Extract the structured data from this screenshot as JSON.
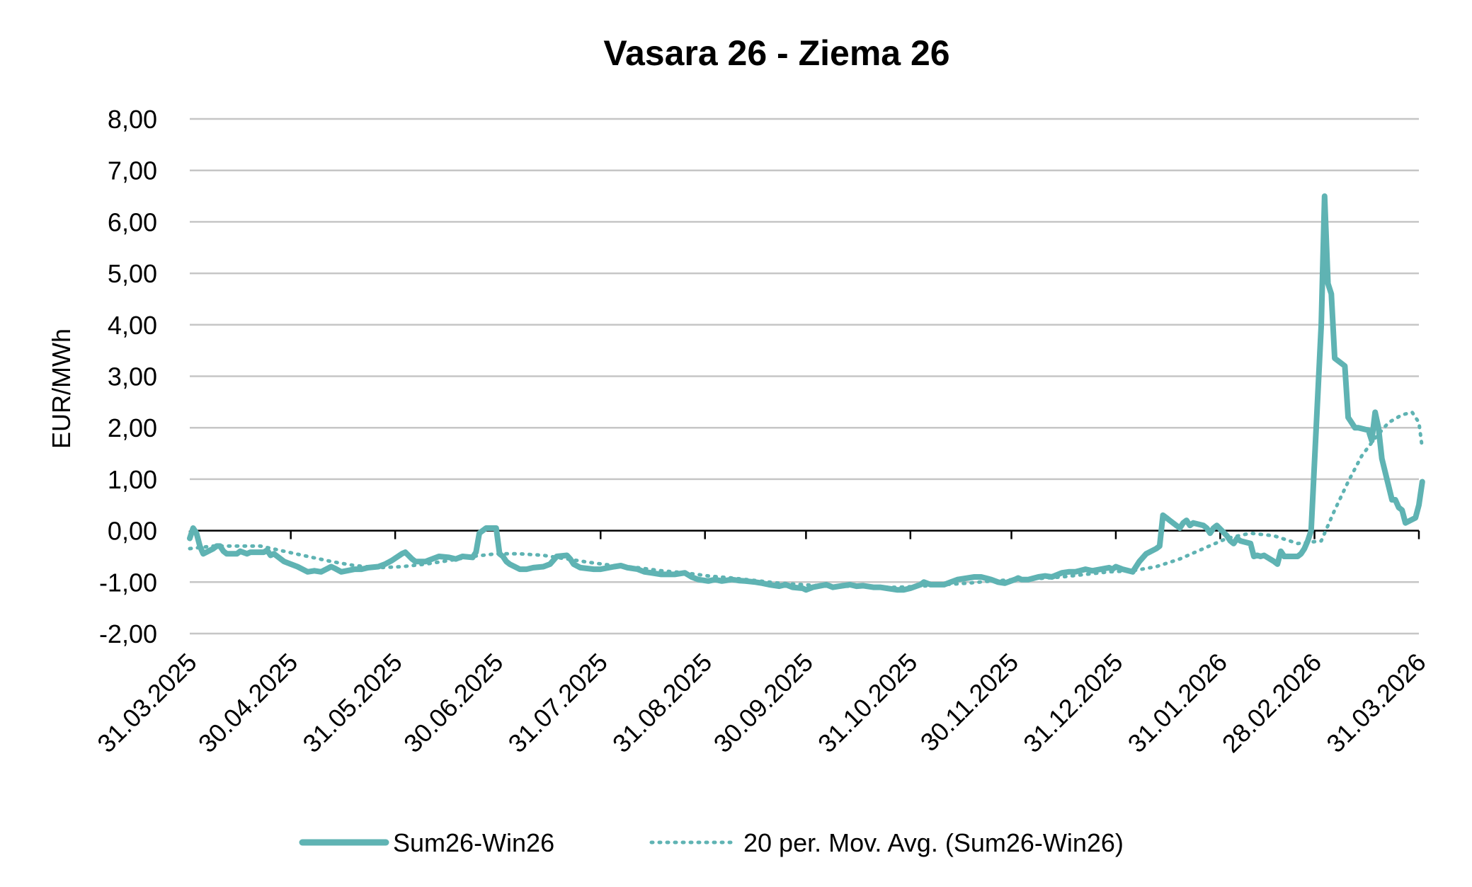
{
  "chart_data": {
    "type": "line",
    "title": "Vasara 26 - Ziema 26",
    "xlabel": "",
    "ylabel": "EUR/MWh",
    "ylim": [
      -2,
      8
    ],
    "yticks": [
      -2,
      -1,
      0,
      1,
      2,
      3,
      4,
      5,
      6,
      7,
      8
    ],
    "ytick_labels": [
      "-2,00",
      "-1,00",
      "0,00",
      "1,00",
      "2,00",
      "3,00",
      "4,00",
      "5,00",
      "6,00",
      "7,00",
      "8,00"
    ],
    "xlim": [
      "2025-03-31",
      "2026-03-31"
    ],
    "xtick_labels": [
      "31.03.2025",
      "30.04.2025",
      "31.05.2025",
      "30.06.2025",
      "31.07.2025",
      "31.08.2025",
      "30.09.2025",
      "31.10.2025",
      "30.11.2025",
      "31.12.2025",
      "31.01.2026",
      "28.02.2026",
      "31.03.2026"
    ],
    "xtick_dates": [
      "2025-03-31",
      "2025-04-30",
      "2025-05-31",
      "2025-06-30",
      "2025-07-31",
      "2025-08-31",
      "2025-09-30",
      "2025-10-31",
      "2025-11-30",
      "2025-12-31",
      "2026-01-31",
      "2026-02-28",
      "2026-03-31"
    ],
    "grid": true,
    "legend_position": "bottom",
    "series": [
      {
        "name": "Sum26-Win26",
        "style": "solid",
        "color": "#5fb3b3",
        "points": [
          [
            "2025-03-31",
            -0.15
          ],
          [
            "2025-04-01",
            0.05
          ],
          [
            "2025-04-02",
            -0.05
          ],
          [
            "2025-04-03",
            -0.3
          ],
          [
            "2025-04-04",
            -0.45
          ],
          [
            "2025-04-07",
            -0.35
          ],
          [
            "2025-04-08",
            -0.3
          ],
          [
            "2025-04-09",
            -0.3
          ],
          [
            "2025-04-10",
            -0.4
          ],
          [
            "2025-04-11",
            -0.45
          ],
          [
            "2025-04-14",
            -0.45
          ],
          [
            "2025-04-15",
            -0.4
          ],
          [
            "2025-04-17",
            -0.45
          ],
          [
            "2025-04-18",
            -0.42
          ],
          [
            "2025-04-22",
            -0.42
          ],
          [
            "2025-04-23",
            -0.38
          ],
          [
            "2025-04-24",
            -0.48
          ],
          [
            "2025-04-25",
            -0.45
          ],
          [
            "2025-04-28",
            -0.6
          ],
          [
            "2025-04-30",
            -0.65
          ],
          [
            "2025-05-02",
            -0.7
          ],
          [
            "2025-05-05",
            -0.8
          ],
          [
            "2025-05-07",
            -0.78
          ],
          [
            "2025-05-09",
            -0.8
          ],
          [
            "2025-05-12",
            -0.7
          ],
          [
            "2025-05-13",
            -0.73
          ],
          [
            "2025-05-15",
            -0.8
          ],
          [
            "2025-05-19",
            -0.75
          ],
          [
            "2025-05-21",
            -0.75
          ],
          [
            "2025-05-23",
            -0.72
          ],
          [
            "2025-05-26",
            -0.7
          ],
          [
            "2025-05-28",
            -0.65
          ],
          [
            "2025-05-30",
            -0.58
          ],
          [
            "2025-06-02",
            -0.45
          ],
          [
            "2025-06-03",
            -0.42
          ],
          [
            "2025-06-05",
            -0.55
          ],
          [
            "2025-06-06",
            -0.6
          ],
          [
            "2025-06-09",
            -0.6
          ],
          [
            "2025-06-11",
            -0.55
          ],
          [
            "2025-06-13",
            -0.5
          ],
          [
            "2025-06-16",
            -0.52
          ],
          [
            "2025-06-18",
            -0.55
          ],
          [
            "2025-06-20",
            -0.5
          ],
          [
            "2025-06-23",
            -0.52
          ],
          [
            "2025-06-24",
            -0.42
          ],
          [
            "2025-06-25",
            -0.05
          ],
          [
            "2025-06-26",
            0.0
          ],
          [
            "2025-06-27",
            0.05
          ],
          [
            "2025-06-30",
            0.05
          ],
          [
            "2025-07-01",
            -0.45
          ],
          [
            "2025-07-02",
            -0.5
          ],
          [
            "2025-07-03",
            -0.6
          ],
          [
            "2025-07-04",
            -0.65
          ],
          [
            "2025-07-07",
            -0.75
          ],
          [
            "2025-07-09",
            -0.75
          ],
          [
            "2025-07-11",
            -0.72
          ],
          [
            "2025-07-14",
            -0.7
          ],
          [
            "2025-07-16",
            -0.65
          ],
          [
            "2025-07-18",
            -0.5
          ],
          [
            "2025-07-21",
            -0.48
          ],
          [
            "2025-07-22",
            -0.55
          ],
          [
            "2025-07-23",
            -0.65
          ],
          [
            "2025-07-25",
            -0.72
          ],
          [
            "2025-07-29",
            -0.75
          ],
          [
            "2025-07-31",
            -0.75
          ],
          [
            "2025-08-04",
            -0.7
          ],
          [
            "2025-08-06",
            -0.68
          ],
          [
            "2025-08-08",
            -0.72
          ],
          [
            "2025-08-11",
            -0.75
          ],
          [
            "2025-08-13",
            -0.8
          ],
          [
            "2025-08-15",
            -0.82
          ],
          [
            "2025-08-18",
            -0.85
          ],
          [
            "2025-08-20",
            -0.85
          ],
          [
            "2025-08-22",
            -0.85
          ],
          [
            "2025-08-25",
            -0.82
          ],
          [
            "2025-08-27",
            -0.9
          ],
          [
            "2025-08-29",
            -0.95
          ],
          [
            "2025-09-01",
            -0.98
          ],
          [
            "2025-09-03",
            -0.95
          ],
          [
            "2025-09-05",
            -0.98
          ],
          [
            "2025-09-08",
            -0.95
          ],
          [
            "2025-09-10",
            -0.97
          ],
          [
            "2025-09-12",
            -0.98
          ],
          [
            "2025-09-15",
            -1.0
          ],
          [
            "2025-09-17",
            -1.02
          ],
          [
            "2025-09-19",
            -1.05
          ],
          [
            "2025-09-22",
            -1.08
          ],
          [
            "2025-09-24",
            -1.05
          ],
          [
            "2025-09-26",
            -1.1
          ],
          [
            "2025-09-29",
            -1.12
          ],
          [
            "2025-09-30",
            -1.15
          ],
          [
            "2025-10-02",
            -1.1
          ],
          [
            "2025-10-06",
            -1.05
          ],
          [
            "2025-10-08",
            -1.1
          ],
          [
            "2025-10-10",
            -1.08
          ],
          [
            "2025-10-13",
            -1.05
          ],
          [
            "2025-10-15",
            -1.08
          ],
          [
            "2025-10-17",
            -1.07
          ],
          [
            "2025-10-20",
            -1.1
          ],
          [
            "2025-10-22",
            -1.1
          ],
          [
            "2025-10-24",
            -1.12
          ],
          [
            "2025-10-27",
            -1.15
          ],
          [
            "2025-10-29",
            -1.15
          ],
          [
            "2025-10-31",
            -1.12
          ],
          [
            "2025-11-03",
            -1.05
          ],
          [
            "2025-11-04",
            -1.0
          ],
          [
            "2025-11-06",
            -1.05
          ],
          [
            "2025-11-10",
            -1.05
          ],
          [
            "2025-11-12",
            -1.0
          ],
          [
            "2025-11-14",
            -0.95
          ],
          [
            "2025-11-17",
            -0.92
          ],
          [
            "2025-11-19",
            -0.9
          ],
          [
            "2025-11-21",
            -0.9
          ],
          [
            "2025-11-24",
            -0.95
          ],
          [
            "2025-11-26",
            -1.0
          ],
          [
            "2025-11-28",
            -1.02
          ],
          [
            "2025-12-01",
            -0.95
          ],
          [
            "2025-12-02",
            -0.92
          ],
          [
            "2025-12-03",
            -0.95
          ],
          [
            "2025-12-05",
            -0.95
          ],
          [
            "2025-12-08",
            -0.9
          ],
          [
            "2025-12-10",
            -0.88
          ],
          [
            "2025-12-12",
            -0.9
          ],
          [
            "2025-12-15",
            -0.82
          ],
          [
            "2025-12-17",
            -0.8
          ],
          [
            "2025-12-19",
            -0.8
          ],
          [
            "2025-12-22",
            -0.75
          ],
          [
            "2025-12-24",
            -0.78
          ],
          [
            "2025-12-29",
            -0.72
          ],
          [
            "2025-12-30",
            -0.75
          ],
          [
            "2025-12-31",
            -0.7
          ],
          [
            "2026-01-02",
            -0.75
          ],
          [
            "2026-01-05",
            -0.8
          ],
          [
            "2026-01-07",
            -0.6
          ],
          [
            "2026-01-09",
            -0.45
          ],
          [
            "2026-01-12",
            -0.35
          ],
          [
            "2026-01-13",
            -0.3
          ],
          [
            "2026-01-14",
            0.3
          ],
          [
            "2026-01-15",
            0.25
          ],
          [
            "2026-01-16",
            0.2
          ],
          [
            "2026-01-19",
            0.05
          ],
          [
            "2026-01-20",
            0.15
          ],
          [
            "2026-01-21",
            0.2
          ],
          [
            "2026-01-22",
            0.1
          ],
          [
            "2026-01-23",
            0.15
          ],
          [
            "2026-01-26",
            0.1
          ],
          [
            "2026-01-27",
            0.05
          ],
          [
            "2026-01-28",
            -0.05
          ],
          [
            "2026-01-29",
            0.05
          ],
          [
            "2026-01-30",
            0.1
          ],
          [
            "2026-02-02",
            -0.1
          ],
          [
            "2026-02-03",
            -0.2
          ],
          [
            "2026-02-04",
            -0.25
          ],
          [
            "2026-02-05",
            -0.15
          ],
          [
            "2026-02-06",
            -0.2
          ],
          [
            "2026-02-09",
            -0.25
          ],
          [
            "2026-02-10",
            -0.5
          ],
          [
            "2026-02-11",
            -0.48
          ],
          [
            "2026-02-12",
            -0.5
          ],
          [
            "2026-02-13",
            -0.48
          ],
          [
            "2026-02-16",
            -0.6
          ],
          [
            "2026-02-17",
            -0.65
          ],
          [
            "2026-02-18",
            -0.4
          ],
          [
            "2026-02-19",
            -0.5
          ],
          [
            "2026-02-20",
            -0.5
          ],
          [
            "2026-02-23",
            -0.5
          ],
          [
            "2026-02-24",
            -0.45
          ],
          [
            "2026-02-25",
            -0.35
          ],
          [
            "2026-02-26",
            -0.2
          ],
          [
            "2026-02-27",
            0.0
          ],
          [
            "2026-03-02",
            4.0
          ],
          [
            "2026-03-03",
            6.5
          ],
          [
            "2026-03-04",
            4.8
          ],
          [
            "2026-03-05",
            4.6
          ],
          [
            "2026-03-06",
            3.35
          ],
          [
            "2026-03-09",
            3.2
          ],
          [
            "2026-03-10",
            2.2
          ],
          [
            "2026-03-11",
            2.1
          ],
          [
            "2026-03-12",
            2.0
          ],
          [
            "2026-03-13",
            2.0
          ],
          [
            "2026-03-16",
            1.95
          ],
          [
            "2026-03-17",
            1.75
          ],
          [
            "2026-03-18",
            2.3
          ],
          [
            "2026-03-19",
            2.0
          ],
          [
            "2026-03-20",
            1.4
          ],
          [
            "2026-03-23",
            0.6
          ],
          [
            "2026-03-24",
            0.6
          ],
          [
            "2026-03-25",
            0.45
          ],
          [
            "2026-03-26",
            0.4
          ],
          [
            "2026-03-27",
            0.15
          ],
          [
            "2026-03-30",
            0.25
          ],
          [
            "2026-03-31",
            0.5
          ],
          [
            "2026-04-01",
            0.95
          ]
        ]
      },
      {
        "name": "20 per. Mov. Avg. (Sum26-Win26)",
        "style": "dotted",
        "color": "#5fb3b3",
        "points": [
          [
            "2025-03-31",
            -0.35
          ],
          [
            "2025-04-07",
            -0.3
          ],
          [
            "2025-04-14",
            -0.3
          ],
          [
            "2025-04-21",
            -0.3
          ],
          [
            "2025-04-28",
            -0.4
          ],
          [
            "2025-05-05",
            -0.5
          ],
          [
            "2025-05-12",
            -0.6
          ],
          [
            "2025-05-19",
            -0.68
          ],
          [
            "2025-05-26",
            -0.72
          ],
          [
            "2025-06-02",
            -0.7
          ],
          [
            "2025-06-09",
            -0.65
          ],
          [
            "2025-06-16",
            -0.58
          ],
          [
            "2025-06-23",
            -0.5
          ],
          [
            "2025-06-30",
            -0.45
          ],
          [
            "2025-07-07",
            -0.45
          ],
          [
            "2025-07-14",
            -0.48
          ],
          [
            "2025-07-21",
            -0.55
          ],
          [
            "2025-07-28",
            -0.62
          ],
          [
            "2025-08-04",
            -0.68
          ],
          [
            "2025-08-11",
            -0.72
          ],
          [
            "2025-08-18",
            -0.78
          ],
          [
            "2025-08-25",
            -0.82
          ],
          [
            "2025-09-01",
            -0.88
          ],
          [
            "2025-09-08",
            -0.92
          ],
          [
            "2025-09-15",
            -0.97
          ],
          [
            "2025-09-22",
            -1.02
          ],
          [
            "2025-09-29",
            -1.05
          ],
          [
            "2025-10-06",
            -1.08
          ],
          [
            "2025-10-13",
            -1.08
          ],
          [
            "2025-10-20",
            -1.1
          ],
          [
            "2025-10-27",
            -1.1
          ],
          [
            "2025-11-03",
            -1.08
          ],
          [
            "2025-11-10",
            -1.05
          ],
          [
            "2025-11-17",
            -1.02
          ],
          [
            "2025-11-24",
            -0.98
          ],
          [
            "2025-12-01",
            -0.95
          ],
          [
            "2025-12-08",
            -0.93
          ],
          [
            "2025-12-15",
            -0.9
          ],
          [
            "2025-12-22",
            -0.85
          ],
          [
            "2025-12-29",
            -0.8
          ],
          [
            "2026-01-05",
            -0.78
          ],
          [
            "2026-01-12",
            -0.7
          ],
          [
            "2026-01-19",
            -0.55
          ],
          [
            "2026-01-26",
            -0.35
          ],
          [
            "2026-02-02",
            -0.15
          ],
          [
            "2026-02-09",
            -0.05
          ],
          [
            "2026-02-16",
            -0.1
          ],
          [
            "2026-02-23",
            -0.25
          ],
          [
            "2026-03-02",
            -0.2
          ],
          [
            "2026-03-06",
            0.4
          ],
          [
            "2026-03-10",
            0.95
          ],
          [
            "2026-03-14",
            1.45
          ],
          [
            "2026-03-18",
            1.8
          ],
          [
            "2026-03-22",
            2.1
          ],
          [
            "2026-03-26",
            2.25
          ],
          [
            "2026-03-29",
            2.3
          ],
          [
            "2026-03-31",
            2.1
          ],
          [
            "2026-04-01",
            1.6
          ]
        ]
      }
    ]
  }
}
